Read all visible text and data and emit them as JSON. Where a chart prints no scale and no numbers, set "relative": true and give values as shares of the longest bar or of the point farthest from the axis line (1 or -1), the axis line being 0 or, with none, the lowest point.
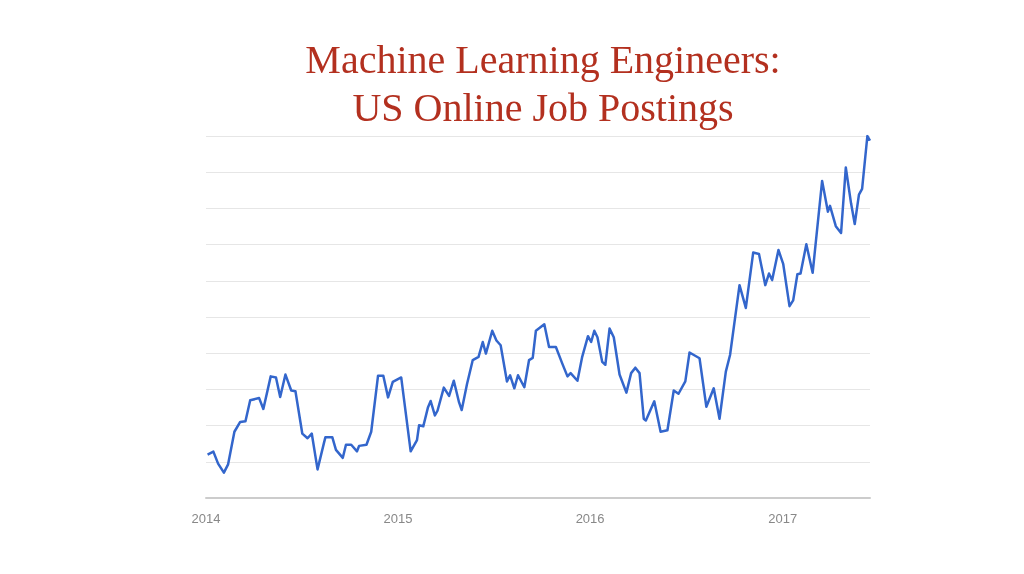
{
  "chart_data": {
    "type": "line",
    "title": "Machine Learning Engineers:\nUS Online Job Postings",
    "relative": true,
    "grid": "y",
    "color": "#3366cc",
    "xlim": [
      "2014-01-01",
      "2017-06-16"
    ],
    "xticks": [
      "2014",
      "2015",
      "2016",
      "2017"
    ],
    "x": [
      "2014-01-04",
      "2014-01-15",
      "2014-01-24",
      "2014-02-04",
      "2014-02-12",
      "2014-02-24",
      "2014-03-07",
      "2014-03-17",
      "2014-03-26",
      "2014-04-12",
      "2014-04-20",
      "2014-05-04",
      "2014-05-14",
      "2014-05-22",
      "2014-06-01",
      "2014-06-12",
      "2014-06-20",
      "2014-07-03",
      "2014-07-13",
      "2014-07-21",
      "2014-08-01",
      "2014-08-13",
      "2014-08-16",
      "2014-08-29",
      "2014-09-05",
      "2014-09-18",
      "2014-09-24",
      "2014-10-04",
      "2014-10-15",
      "2014-10-19",
      "2014-11-02",
      "2014-11-11",
      "2014-11-24",
      "2014-12-04",
      "2014-12-13",
      "2014-12-22",
      "2015-01-07",
      "2015-01-25",
      "2015-02-06",
      "2015-02-10",
      "2015-02-18",
      "2015-02-27",
      "2015-03-04",
      "2015-03-12",
      "2015-03-17",
      "2015-03-29",
      "2015-04-08",
      "2015-04-17",
      "2015-04-27",
      "2015-05-02",
      "2015-05-12",
      "2015-05-23",
      "2015-06-03",
      "2015-06-11",
      "2015-06-17",
      "2015-06-29",
      "2015-07-07",
      "2015-07-15",
      "2015-07-27",
      "2015-08-02",
      "2015-08-10",
      "2015-08-17",
      "2015-08-29",
      "2015-09-07",
      "2015-09-14",
      "2015-09-20",
      "2015-10-06",
      "2015-10-15",
      "2015-10-28",
      "2015-11-09",
      "2015-11-19",
      "2015-11-25",
      "2015-12-08",
      "2015-12-17",
      "2015-12-28",
      "2016-01-03",
      "2016-01-09",
      "2016-01-15",
      "2016-01-24",
      "2016-01-30",
      "2016-02-07",
      "2016-02-15",
      "2016-02-26",
      "2016-03-10",
      "2016-03-19",
      "2016-03-27",
      "2016-04-04",
      "2016-04-12",
      "2016-04-16",
      "2016-05-02",
      "2016-05-14",
      "2016-05-27",
      "2016-06-08",
      "2016-06-17",
      "2016-06-30",
      "2016-07-08",
      "2016-07-27",
      "2016-08-09",
      "2016-08-23",
      "2016-09-03",
      "2016-09-15",
      "2016-09-23",
      "2016-10-11",
      "2016-10-23",
      "2016-11-06",
      "2016-11-17",
      "2016-11-29",
      "2016-12-06",
      "2016-12-12",
      "2016-12-24",
      "2017-01-02",
      "2017-01-14",
      "2017-01-21",
      "2017-01-29",
      "2017-02-04",
      "2017-02-15",
      "2017-02-27",
      "2017-03-17",
      "2017-03-28",
      "2017-04-01",
      "2017-04-12",
      "2017-04-22",
      "2017-05-01",
      "2017-05-11",
      "2017-05-18",
      "2017-05-26",
      "2017-06-01",
      "2017-06-11",
      "2017-06-16"
    ],
    "values": [
      0.12,
      0.128,
      0.095,
      0.07,
      0.093,
      0.183,
      0.21,
      0.212,
      0.27,
      0.276,
      0.246,
      0.336,
      0.333,
      0.279,
      0.341,
      0.297,
      0.295,
      0.178,
      0.165,
      0.178,
      0.079,
      0.151,
      0.168,
      0.168,
      0.133,
      0.111,
      0.147,
      0.147,
      0.129,
      0.144,
      0.147,
      0.183,
      0.338,
      0.338,
      0.278,
      0.321,
      0.333,
      0.129,
      0.16,
      0.201,
      0.198,
      0.251,
      0.268,
      0.228,
      0.241,
      0.305,
      0.282,
      0.324,
      0.264,
      0.243,
      0.314,
      0.381,
      0.39,
      0.431,
      0.399,
      0.462,
      0.435,
      0.422,
      0.322,
      0.339,
      0.303,
      0.339,
      0.306,
      0.381,
      0.387,
      0.462,
      0.48,
      0.417,
      0.417,
      0.372,
      0.336,
      0.345,
      0.324,
      0.39,
      0.447,
      0.431,
      0.462,
      0.444,
      0.376,
      0.368,
      0.468,
      0.444,
      0.341,
      0.291,
      0.345,
      0.36,
      0.345,
      0.219,
      0.214,
      0.267,
      0.183,
      0.187,
      0.297,
      0.288,
      0.322,
      0.402,
      0.386,
      0.252,
      0.303,
      0.219,
      0.349,
      0.395,
      0.588,
      0.525,
      0.678,
      0.674,
      0.588,
      0.62,
      0.602,
      0.685,
      0.647,
      0.53,
      0.546,
      0.618,
      0.62,
      0.701,
      0.622,
      0.876,
      0.791,
      0.807,
      0.751,
      0.732,
      0.913,
      0.814,
      0.757,
      0.838,
      0.854,
      1,
      0.987
    ]
  }
}
